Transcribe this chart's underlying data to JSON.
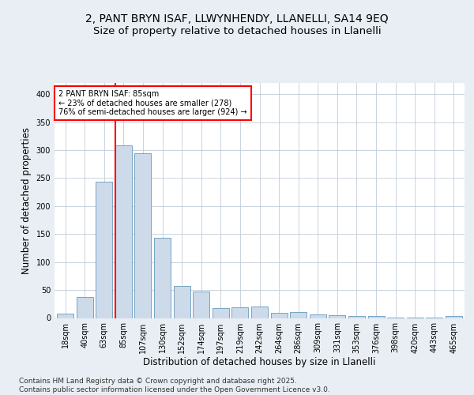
{
  "title_line1": "2, PANT BRYN ISAF, LLWYNHENDY, LLANELLI, SA14 9EQ",
  "title_line2": "Size of property relative to detached houses in Llanelli",
  "xlabel": "Distribution of detached houses by size in Llanelli",
  "ylabel": "Number of detached properties",
  "categories": [
    "18sqm",
    "40sqm",
    "63sqm",
    "85sqm",
    "107sqm",
    "130sqm",
    "152sqm",
    "174sqm",
    "197sqm",
    "219sqm",
    "242sqm",
    "264sqm",
    "286sqm",
    "309sqm",
    "331sqm",
    "353sqm",
    "376sqm",
    "398sqm",
    "420sqm",
    "443sqm",
    "465sqm"
  ],
  "values": [
    8,
    38,
    243,
    308,
    295,
    143,
    57,
    47,
    18,
    19,
    20,
    9,
    10,
    7,
    5,
    3,
    4,
    1,
    1,
    1,
    4
  ],
  "bar_color": "#ccdaea",
  "bar_edge_color": "#6699bb",
  "redline_index": 3,
  "annotation_text": "2 PANT BRYN ISAF: 85sqm\n← 23% of detached houses are smaller (278)\n76% of semi-detached houses are larger (924) →",
  "ylim": [
    0,
    420
  ],
  "yticks": [
    0,
    50,
    100,
    150,
    200,
    250,
    300,
    350,
    400
  ],
  "footer_text": "Contains HM Land Registry data © Crown copyright and database right 2025.\nContains public sector information licensed under the Open Government Licence v3.0.",
  "bg_color": "#e8eef4",
  "plot_bg_color": "#ffffff",
  "grid_color": "#c0ccd8",
  "title_fontsize": 10,
  "subtitle_fontsize": 9.5,
  "label_fontsize": 8.5,
  "tick_fontsize": 7,
  "footer_fontsize": 6.5
}
